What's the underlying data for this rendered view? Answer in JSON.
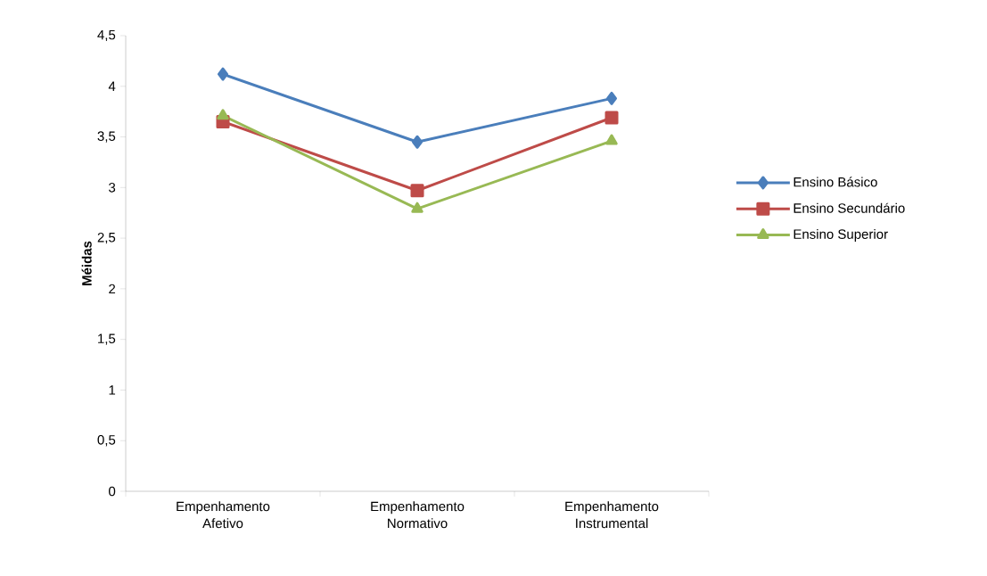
{
  "chart_data": {
    "type": "line",
    "ylabel": "Méidas",
    "categories": [
      "Empenhamento Afetivo",
      "Empenhamento Normativo",
      "Empenhamento Instrumental"
    ],
    "series": [
      {
        "name": "Ensino Básico",
        "color": "#4a7ebb",
        "marker": "diamond",
        "values": [
          4.12,
          3.45,
          3.88
        ]
      },
      {
        "name": "Ensino Secundário",
        "color": "#be4b48",
        "marker": "square",
        "values": [
          3.65,
          2.97,
          3.69
        ]
      },
      {
        "name": "Ensino Superior",
        "color": "#98b954",
        "marker": "triangle",
        "values": [
          3.71,
          2.79,
          3.46
        ]
      }
    ],
    "ylim": [
      0,
      4.5
    ],
    "yticks": [
      {
        "value": 0,
        "label": "0"
      },
      {
        "value": 0.5,
        "label": "0,5"
      },
      {
        "value": 1,
        "label": "1"
      },
      {
        "value": 1.5,
        "label": "1,5"
      },
      {
        "value": 2,
        "label": "2"
      },
      {
        "value": 2.5,
        "label": "2,5"
      },
      {
        "value": 3,
        "label": "3"
      },
      {
        "value": 3.5,
        "label": "3,5"
      },
      {
        "value": 4,
        "label": "4"
      },
      {
        "value": 4.5,
        "label": "4,5"
      }
    ],
    "grid": false,
    "legend": "right",
    "line_style": "solid"
  }
}
